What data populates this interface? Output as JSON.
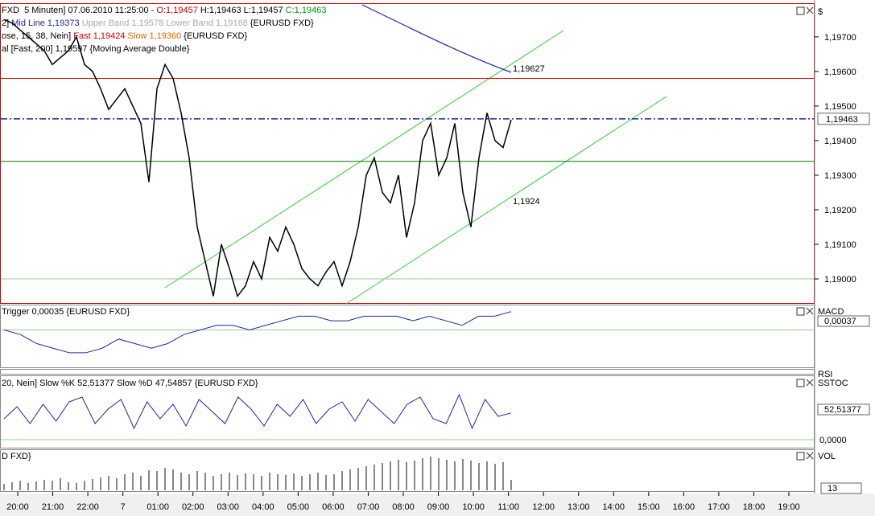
{
  "price_panel": {
    "header": {
      "line1": [
        "FXD  5 Minuten] 07.06.2010 11:25:00 - ",
        "O:1,19457",
        " H:1,19463 L:1,19457 ",
        "C:1,19463"
      ],
      "line2": [
        "2] ",
        "Mid Line 1,19373",
        " Upper Band 1,19578 Lower Band 1,19168",
        " {EURUSD FXD}"
      ],
      "line3": [
        "ose, 15, 38, Nein] ",
        "Fast 1,19424",
        " Slow 1,19360",
        " {EURUSD FXD}"
      ],
      "line4": [
        "al [Fast, 200] 1,19597 {Moving Average Double}"
      ]
    },
    "currency": "$",
    "ylim": [
      1.18928,
      1.19795
    ],
    "yticks": [
      {
        "value": 1.197,
        "label": "1,19700"
      },
      {
        "value": 1.196,
        "label": "1,19600"
      },
      {
        "value": 1.195,
        "label": "1,19500"
      },
      {
        "value": 1.194,
        "label": "1,19400"
      },
      {
        "value": 1.193,
        "label": "1,19300"
      },
      {
        "value": 1.192,
        "label": "1,19200"
      },
      {
        "value": 1.191,
        "label": "1,19100"
      },
      {
        "value": 1.19,
        "label": "1,19000"
      }
    ],
    "close": [
      1.1975,
      1.1974,
      1.1972,
      1.197,
      1.1968,
      1.1966,
      1.1962,
      1.1964,
      1.1966,
      1.197,
      1.1962,
      1.196,
      1.1955,
      1.1949,
      1.1952,
      1.1955,
      1.195,
      1.1945,
      1.1928,
      1.1955,
      1.1962,
      1.1958,
      1.1948,
      1.1935,
      1.1915,
      1.1905,
      1.1895,
      1.191,
      1.1903,
      1.1895,
      1.1898,
      1.1905,
      1.19,
      1.1912,
      1.1908,
      1.1915,
      1.191,
      1.1903,
      1.19,
      1.1898,
      1.1902,
      1.1905,
      1.1898,
      1.1905,
      1.1915,
      1.193,
      1.1935,
      1.1925,
      1.1922,
      1.193,
      1.1912,
      1.1922,
      1.194,
      1.1945,
      1.193,
      1.1935,
      1.1945,
      1.1925,
      1.1915,
      1.1935,
      1.1948,
      1.194,
      1.1938,
      1.1946
    ],
    "levels": {
      "resistance": 1.1958,
      "current": 1.19463,
      "support": 1.1934,
      "low": 1.19
    },
    "current_label": "1,19463",
    "annotations": {
      "upper": "1,19627",
      "lower": "1,1924"
    }
  },
  "macd_panel": {
    "header": "Trigger 0,00035 {EURUSD FXD}",
    "name": "MACD",
    "current_label": "0,00037",
    "ylim": [
      -0.0008,
      0.0005
    ],
    "macd": [
      0.0,
      -0.0001,
      -0.0003,
      -0.0004,
      -0.0005,
      -0.0005,
      -0.0004,
      -0.0002,
      -0.0003,
      -0.0004,
      -0.0003,
      -0.0001,
      0.0,
      0.0001,
      0.0001,
      0.0,
      0.0001,
      0.0002,
      0.0003,
      0.0003,
      0.0002,
      0.0002,
      0.0003,
      0.0003,
      0.0003,
      0.0002,
      0.0003,
      0.0002,
      0.0001,
      0.0003,
      0.0003,
      0.0004
    ]
  },
  "rsi_panel": {
    "name": "RSI"
  },
  "stoch_panel": {
    "header": "20, Nein] Slow %K 52,51377 Slow %D 47,54857 {EURUSD FXD}",
    "name": "SSTOC",
    "current_label": "52,51377",
    "zero_label": "0,0000",
    "ylim": [
      0,
      100
    ],
    "k": [
      40,
      65,
      30,
      70,
      35,
      75,
      85,
      30,
      60,
      80,
      20,
      75,
      40,
      70,
      25,
      80,
      55,
      30,
      85,
      60,
      25,
      70,
      45,
      80,
      30,
      60,
      75,
      35,
      80,
      55,
      30,
      70,
      85,
      40,
      30,
      90,
      20,
      80,
      45,
      52
    ]
  },
  "volume_panel": {
    "header": "D FXD}",
    "name": "VOL",
    "current_label": "13",
    "ylim": [
      0,
      45
    ],
    "volume": [
      8,
      10,
      12,
      9,
      11,
      13,
      12,
      15,
      10,
      9,
      12,
      14,
      16,
      18,
      15,
      20,
      22,
      18,
      25,
      24,
      28,
      26,
      22,
      20,
      24,
      22,
      18,
      20,
      22,
      19,
      21,
      20,
      18,
      22,
      20,
      19,
      21,
      18,
      20,
      22,
      19,
      20,
      24,
      26,
      28,
      30,
      32,
      34,
      36,
      38,
      35,
      37,
      40,
      42,
      40,
      38,
      36,
      39,
      37,
      34,
      36,
      33,
      35,
      13
    ]
  },
  "time_axis": [
    "20:00",
    "21:00",
    "22:00",
    "7",
    "01:00",
    "02:00",
    "03:00",
    "04:00",
    "05:00",
    "06:00",
    "07:00",
    "08:00",
    "09:00",
    "10:00",
    "11:00",
    "12:00",
    "13:00",
    "14:00",
    "15:00",
    "16:00",
    "17:00",
    "18:00",
    "19:00"
  ]
}
